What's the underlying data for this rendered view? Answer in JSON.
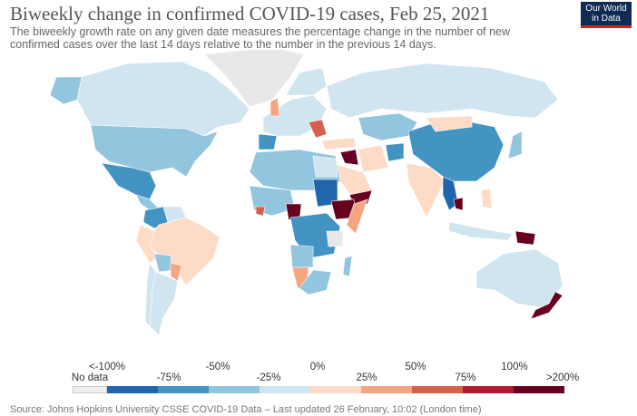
{
  "title": "Biweekly change in confirmed COVID-19 cases, Feb 25, 2021",
  "subtitle": "The biweekly growth rate on any given date measures the percentage change in the number of new confirmed cases over the last 14 days relative to the number in the previous 14 days.",
  "logo": {
    "line1": "Our World",
    "line2": "in Data"
  },
  "legend": {
    "no_data_label": "No data",
    "no_data_color": "#eeeeee",
    "upper_labels": [
      "<-100%",
      "-50%",
      "0%",
      "50%",
      "100%"
    ],
    "lower_labels": [
      "-75%",
      "-25%",
      "25%",
      "75%",
      ">200%"
    ],
    "colors": [
      "#2166ac",
      "#4393c3",
      "#92c5de",
      "#d1e5f0",
      "#fddbc7",
      "#f4a582",
      "#d6604d",
      "#b2182b",
      "#67001f"
    ]
  },
  "source": "Source: Johns Hopkins University CSSE COVID-19 Data – Last updated 26 February, 10:02 (London time)"
}
